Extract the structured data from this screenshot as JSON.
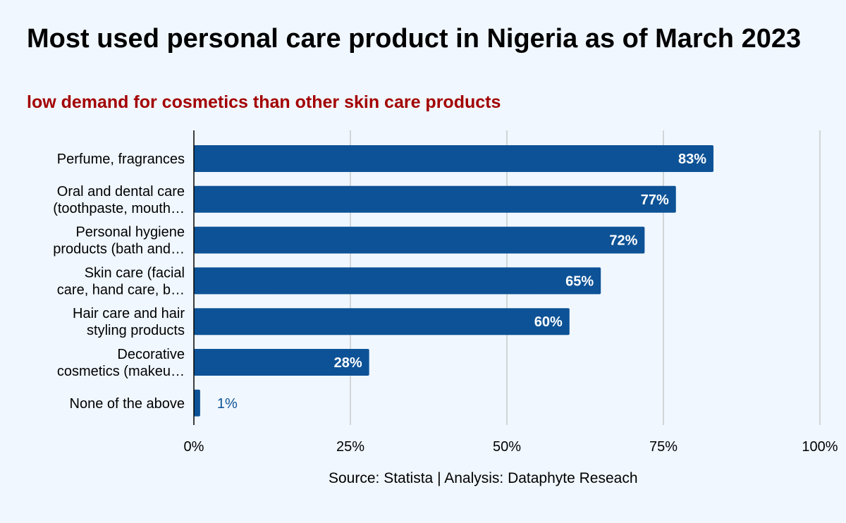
{
  "title": "Most used personal care product in Nigeria as of March 2023",
  "subtitle": "low demand for cosmetics than other skin care products",
  "source": "Source: Statista | Analysis: Dataphyte Reseach",
  "colors": {
    "bar": "#0d5296",
    "subtitle": "#a30000",
    "grid": "#c8cacc",
    "background": "#f0f7ff"
  },
  "chart_data": {
    "type": "bar",
    "orientation": "horizontal",
    "categories": [
      [
        "Perfume, fragrances"
      ],
      [
        "Oral and dental care",
        "(toothpaste, mouth…"
      ],
      [
        "Personal hygiene",
        "products (bath and…"
      ],
      [
        "Skin care (facial",
        "care, hand care, b…"
      ],
      [
        "Hair care and hair",
        "styling products"
      ],
      [
        "Decorative",
        "cosmetics (makeu…"
      ],
      [
        "None of the above"
      ]
    ],
    "values": [
      83,
      77,
      72,
      65,
      60,
      28,
      1
    ],
    "data_labels": [
      "83%",
      "77%",
      "72%",
      "65%",
      "60%",
      "28%",
      "1%"
    ],
    "xlim": [
      0,
      100
    ],
    "x_ticks": [
      0,
      25,
      50,
      75,
      100
    ],
    "x_tick_labels": [
      "0%",
      "25%",
      "50%",
      "75%",
      "100%"
    ],
    "grid": true,
    "legend": "none"
  }
}
